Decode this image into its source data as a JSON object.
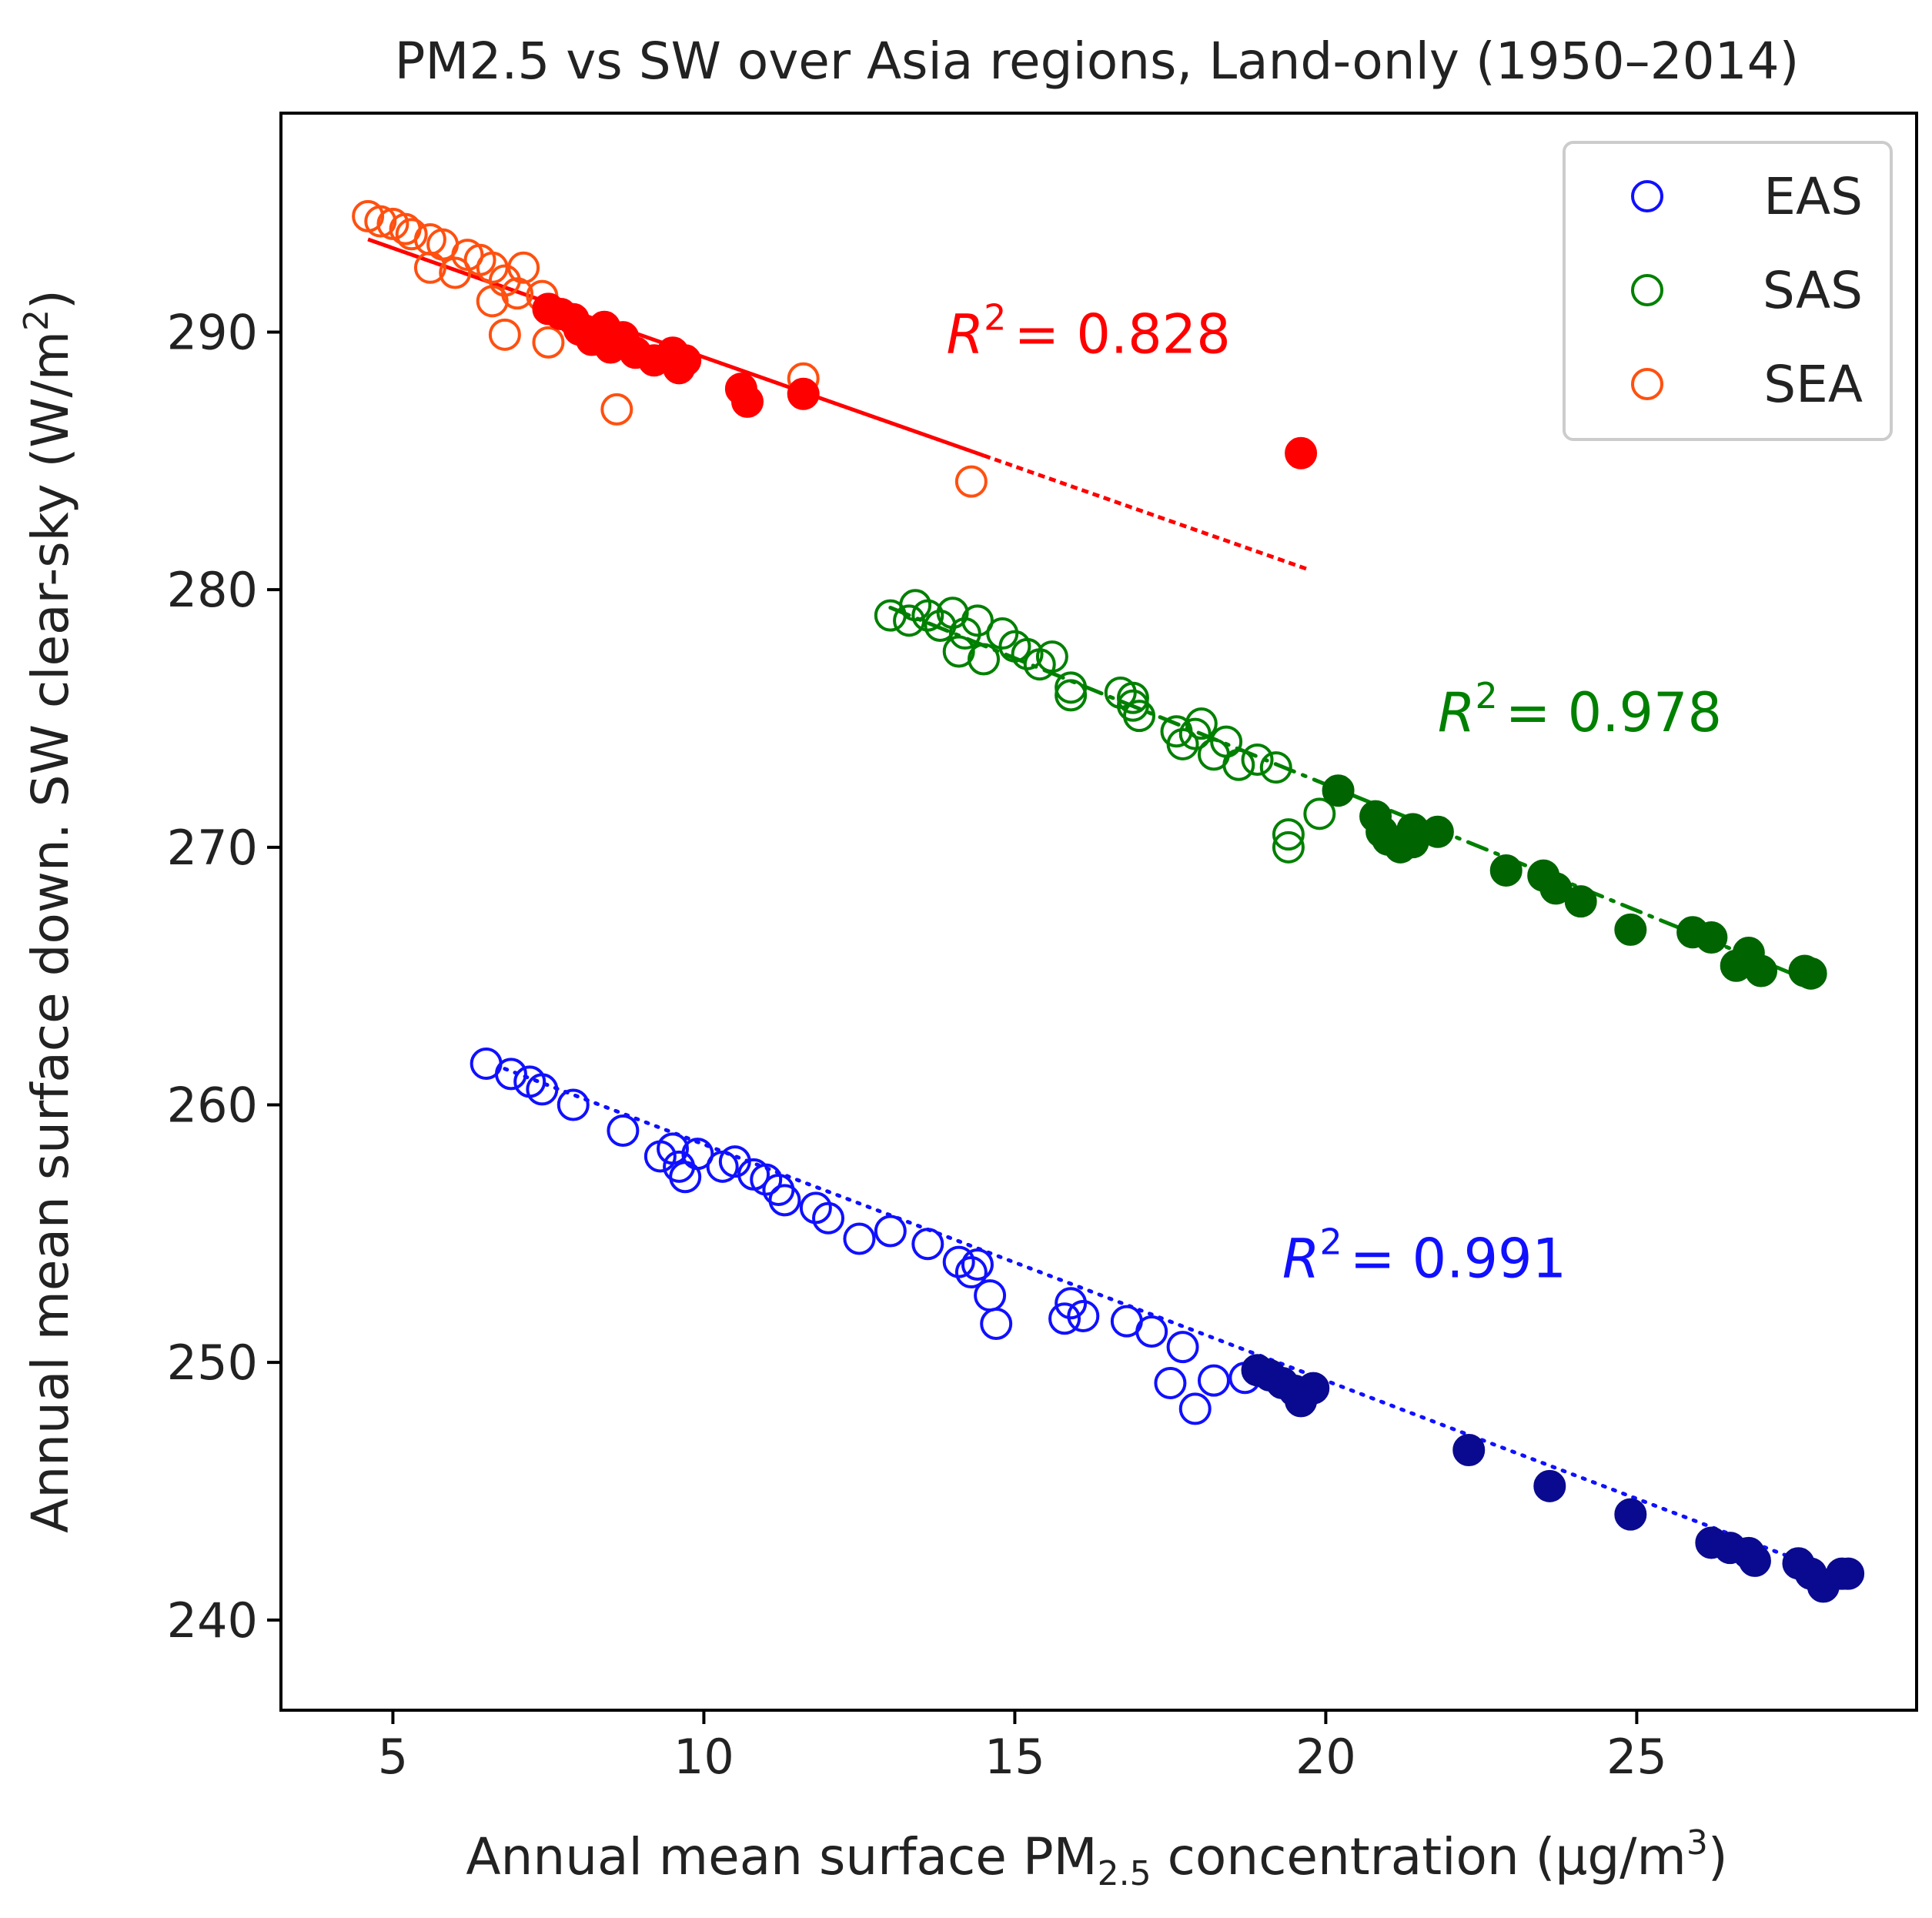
{
  "chart_data": {
    "type": "scatter",
    "title": "PM2.5 vs SW over Asia regions, Land-only (1950–2014)",
    "xlabel": {
      "prefix": "Annual mean surface PM",
      "subscript": "2.5",
      "suffix": " concentration (μg/m",
      "superscript": "3",
      "end": ")"
    },
    "ylabel": {
      "prefix": "Annual mean surface down. SW clear-sky (W/m",
      "superscript": "2",
      "end": ")"
    },
    "xlim": [
      3.2,
      29.5
    ],
    "ylim": [
      236.5,
      298.5
    ],
    "xticks": [
      5,
      10,
      15,
      20,
      25
    ],
    "yticks": [
      240,
      250,
      260,
      270,
      280,
      290
    ],
    "legend": {
      "placement": "top-right",
      "entries": [
        "EAS",
        "SAS",
        "SEA"
      ]
    },
    "series": [
      {
        "name": "EAS",
        "color": "#1010ff",
        "fill_color": "#0a0a90",
        "line_style": "dotted",
        "r2_label": "R",
        "r2_sup": "2",
        "r2_value": "= 0.991",
        "r2_pos": [
          19.3,
          253.3
        ],
        "fit": [
          [
            6.8,
            261.4
          ],
          [
            28.5,
            241.5
          ]
        ],
        "open_points": [
          [
            6.5,
            261.6
          ],
          [
            6.9,
            261.2
          ],
          [
            7.2,
            260.9
          ],
          [
            7.4,
            260.6
          ],
          [
            7.9,
            260.0
          ],
          [
            8.7,
            259.0
          ],
          [
            9.3,
            258.0
          ],
          [
            9.5,
            258.3
          ],
          [
            9.6,
            257.6
          ],
          [
            9.7,
            257.2
          ],
          [
            9.9,
            258.1
          ],
          [
            10.3,
            257.6
          ],
          [
            10.5,
            257.8
          ],
          [
            10.8,
            257.3
          ],
          [
            11.0,
            257.1
          ],
          [
            11.2,
            256.7
          ],
          [
            11.3,
            256.3
          ],
          [
            11.8,
            256.0
          ],
          [
            12.0,
            255.6
          ],
          [
            12.5,
            254.8
          ],
          [
            13.0,
            255.1
          ],
          [
            13.6,
            254.6
          ],
          [
            14.1,
            253.9
          ],
          [
            14.3,
            253.5
          ],
          [
            14.4,
            253.8
          ],
          [
            14.6,
            252.6
          ],
          [
            14.7,
            251.5
          ],
          [
            15.8,
            251.7
          ],
          [
            15.9,
            252.3
          ],
          [
            16.1,
            251.8
          ],
          [
            16.8,
            251.6
          ],
          [
            17.2,
            251.2
          ],
          [
            17.5,
            249.2
          ],
          [
            17.7,
            250.6
          ],
          [
            17.9,
            248.2
          ],
          [
            18.2,
            249.3
          ],
          [
            18.7,
            249.4
          ]
        ],
        "filled_points": [
          [
            18.9,
            249.7
          ],
          [
            19.1,
            249.5
          ],
          [
            19.3,
            249.2
          ],
          [
            19.5,
            248.9
          ],
          [
            19.6,
            248.5
          ],
          [
            19.8,
            249.0
          ],
          [
            22.3,
            246.6
          ],
          [
            23.6,
            245.2
          ],
          [
            24.9,
            244.1
          ],
          [
            26.2,
            243.0
          ],
          [
            26.5,
            242.8
          ],
          [
            26.8,
            242.6
          ],
          [
            26.9,
            242.3
          ],
          [
            27.6,
            242.2
          ],
          [
            27.8,
            241.8
          ],
          [
            28.0,
            241.3
          ],
          [
            28.3,
            241.8
          ],
          [
            28.4,
            241.8
          ]
        ]
      },
      {
        "name": "SAS",
        "color": "#008000",
        "fill_color": "#006400",
        "line_style": "dashdot",
        "r2_label": "R",
        "r2_sup": "2",
        "r2_value": "= 0.978",
        "r2_pos": [
          21.8,
          274.5
        ],
        "fit": [
          [
            13.0,
            279.3
          ],
          [
            27.8,
            264.8
          ]
        ],
        "open_points": [
          [
            13.0,
            279.0
          ],
          [
            13.3,
            278.8
          ],
          [
            13.4,
            279.4
          ],
          [
            13.6,
            279.0
          ],
          [
            13.8,
            278.6
          ],
          [
            14.0,
            279.1
          ],
          [
            14.2,
            278.3
          ],
          [
            14.1,
            277.6
          ],
          [
            14.4,
            278.8
          ],
          [
            14.5,
            277.3
          ],
          [
            14.8,
            278.3
          ],
          [
            15.0,
            277.8
          ],
          [
            15.2,
            277.5
          ],
          [
            15.4,
            277.1
          ],
          [
            15.6,
            277.4
          ],
          [
            15.9,
            276.2
          ],
          [
            15.9,
            275.9
          ],
          [
            16.7,
            276.0
          ],
          [
            16.9,
            275.5
          ],
          [
            16.9,
            275.8
          ],
          [
            17.0,
            275.1
          ],
          [
            17.6,
            274.5
          ],
          [
            17.7,
            274.0
          ],
          [
            17.9,
            274.4
          ],
          [
            18.0,
            274.8
          ],
          [
            18.2,
            273.6
          ],
          [
            18.4,
            274.1
          ],
          [
            18.6,
            273.2
          ],
          [
            18.9,
            273.4
          ],
          [
            19.2,
            273.1
          ],
          [
            19.4,
            270.5
          ],
          [
            19.4,
            270.0
          ],
          [
            19.9,
            271.3
          ]
        ],
        "filled_points": [
          [
            20.2,
            272.2
          ],
          [
            20.8,
            271.2
          ],
          [
            20.9,
            270.6
          ],
          [
            21.0,
            270.3
          ],
          [
            21.2,
            270.0
          ],
          [
            21.4,
            270.2
          ],
          [
            21.4,
            270.7
          ],
          [
            21.8,
            270.6
          ],
          [
            22.9,
            269.1
          ],
          [
            23.5,
            268.9
          ],
          [
            23.7,
            268.4
          ],
          [
            24.1,
            267.9
          ],
          [
            24.9,
            266.8
          ],
          [
            25.9,
            266.7
          ],
          [
            26.2,
            266.5
          ],
          [
            26.6,
            265.4
          ],
          [
            26.8,
            265.9
          ],
          [
            27.0,
            265.2
          ],
          [
            27.7,
            265.2
          ],
          [
            27.8,
            265.1
          ]
        ]
      },
      {
        "name": "SEA",
        "color": "#ff5010",
        "fill_color": "#ff0000",
        "line_color": "#ff0000",
        "line_style": "mixed",
        "r2_label": "R",
        "r2_sup": "2",
        "r2_value": "= 0.828",
        "r2_pos": [
          13.9,
          289.2
        ],
        "fit": [
          [
            4.6,
            293.6
          ],
          [
            19.7,
            280.8
          ]
        ],
        "fit_solid_until": 14.5,
        "open_points": [
          [
            4.6,
            294.5
          ],
          [
            4.8,
            294.3
          ],
          [
            5.0,
            294.2
          ],
          [
            5.2,
            294.0
          ],
          [
            5.3,
            293.8
          ],
          [
            5.6,
            293.6
          ],
          [
            5.8,
            293.4
          ],
          [
            5.6,
            292.5
          ],
          [
            6.0,
            292.3
          ],
          [
            6.2,
            293.0
          ],
          [
            6.4,
            292.8
          ],
          [
            6.6,
            292.5
          ],
          [
            6.8,
            292.0
          ],
          [
            7.0,
            291.5
          ],
          [
            7.1,
            292.5
          ],
          [
            6.6,
            291.2
          ],
          [
            6.8,
            289.9
          ],
          [
            7.4,
            291.4
          ],
          [
            7.5,
            289.6
          ],
          [
            8.6,
            287.0
          ],
          [
            11.6,
            288.2
          ],
          [
            14.3,
            284.2
          ]
        ],
        "filled_points": [
          [
            7.5,
            290.9
          ],
          [
            7.7,
            290.7
          ],
          [
            7.9,
            290.5
          ],
          [
            8.0,
            290.1
          ],
          [
            8.2,
            289.7
          ],
          [
            8.4,
            290.2
          ],
          [
            8.5,
            289.4
          ],
          [
            8.7,
            289.8
          ],
          [
            8.9,
            289.2
          ],
          [
            9.2,
            288.9
          ],
          [
            9.5,
            289.2
          ],
          [
            9.6,
            288.6
          ],
          [
            9.7,
            288.9
          ],
          [
            10.6,
            287.8
          ],
          [
            10.7,
            287.3
          ],
          [
            11.6,
            287.6
          ],
          [
            19.6,
            285.3
          ]
        ]
      }
    ]
  }
}
